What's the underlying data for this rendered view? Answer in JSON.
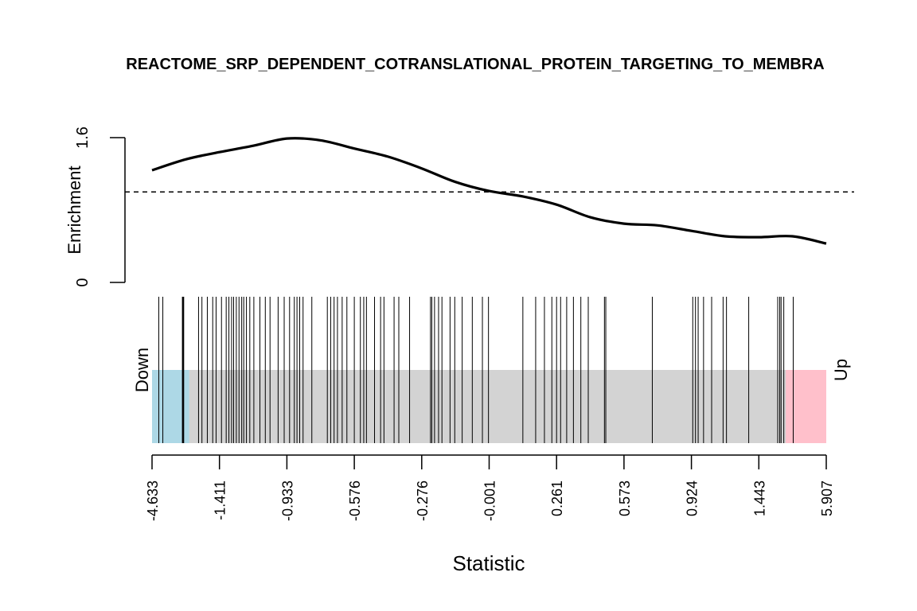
{
  "chart_data": {
    "type": "line",
    "title": "REACTOME_SRP_DEPENDENT_COTRANSLATIONAL_PROTEIN_TARGETING_TO_MEMBRA",
    "enrichment": {
      "ylabel": "Enrichment",
      "ylim": [
        0,
        1.6
      ],
      "y_ticks": [
        "0",
        "1.6"
      ],
      "reference_line": 1,
      "x_rank": [
        0.0,
        0.05,
        0.1,
        0.15,
        0.2,
        0.25,
        0.3,
        0.35,
        0.4,
        0.45,
        0.5,
        0.55,
        0.6,
        0.65,
        0.7,
        0.75,
        0.8,
        0.85,
        0.9,
        0.95,
        1.0
      ],
      "y_values": [
        1.24,
        1.36,
        1.44,
        1.51,
        1.59,
        1.57,
        1.48,
        1.39,
        1.26,
        1.11,
        1.01,
        0.95,
        0.86,
        0.72,
        0.65,
        0.63,
        0.57,
        0.51,
        0.5,
        0.51,
        0.43
      ]
    },
    "barcode": {
      "xlabel": "Statistic",
      "left_label": "Down",
      "right_label": "Up",
      "colors": {
        "down": "#add8e6",
        "neutral": "#d3d3d3",
        "up": "#ffc0cb",
        "bars": "#000000"
      },
      "down_end_rank": 0.055,
      "up_start_rank": 0.94,
      "x_ticks": [
        "-4.633",
        "-1.411",
        "-0.933",
        "-0.576",
        "-0.276",
        "-0.001",
        "0.261",
        "0.573",
        "0.924",
        "1.443",
        "5.907"
      ],
      "gene_ranks": [
        0.01,
        0.016,
        0.045,
        0.046,
        0.047,
        0.069,
        0.074,
        0.082,
        0.09,
        0.095,
        0.103,
        0.11,
        0.114,
        0.118,
        0.121,
        0.125,
        0.129,
        0.133,
        0.136,
        0.14,
        0.145,
        0.151,
        0.16,
        0.168,
        0.175,
        0.187,
        0.196,
        0.204,
        0.211,
        0.215,
        0.219,
        0.224,
        0.237,
        0.26,
        0.265,
        0.27,
        0.275,
        0.282,
        0.289,
        0.3,
        0.309,
        0.314,
        0.318,
        0.33,
        0.339,
        0.344,
        0.359,
        0.366,
        0.382,
        0.413,
        0.415,
        0.419,
        0.425,
        0.43,
        0.442,
        0.449,
        0.46,
        0.475,
        0.49,
        0.499,
        0.55,
        0.569,
        0.582,
        0.593,
        0.6,
        0.606,
        0.615,
        0.625,
        0.636,
        0.647,
        0.671,
        0.673,
        0.742,
        0.802,
        0.806,
        0.81,
        0.818,
        0.83,
        0.847,
        0.852,
        0.885,
        0.928,
        0.931,
        0.933,
        0.937,
        0.951
      ]
    }
  }
}
